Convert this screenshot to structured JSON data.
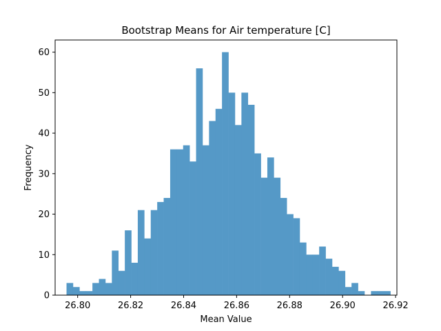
{
  "chart_data": {
    "type": "bar",
    "title": "Bootstrap Means for Air temperature [C]",
    "xlabel": "Mean Value",
    "ylabel": "Frequency",
    "xlim": [
      26.7915,
      26.9205
    ],
    "ylim": [
      0,
      63
    ],
    "xticks": [
      "26.80",
      "26.82",
      "26.84",
      "26.86",
      "26.88",
      "26.90",
      "26.92"
    ],
    "xtick_values": [
      26.8,
      26.82,
      26.84,
      26.86,
      26.88,
      26.9,
      26.92
    ],
    "yticks": [
      "0",
      "10",
      "20",
      "30",
      "40",
      "50",
      "60"
    ],
    "ytick_values": [
      0,
      10,
      20,
      30,
      40,
      50,
      60
    ],
    "bin_start": 26.7958,
    "bin_width": 0.002445,
    "values": [
      3,
      2,
      1,
      1,
      3,
      4,
      3,
      11,
      6,
      16,
      8,
      21,
      14,
      21,
      23,
      24,
      36,
      36,
      37,
      33,
      56,
      37,
      43,
      46,
      60,
      50,
      42,
      50,
      47,
      35,
      29,
      34,
      29,
      24,
      20,
      19,
      13,
      10,
      10,
      12,
      9,
      7,
      6,
      2,
      3,
      1,
      0,
      1,
      1,
      1
    ],
    "bar_color": "#5599c7",
    "grid": false,
    "legend": "none"
  }
}
